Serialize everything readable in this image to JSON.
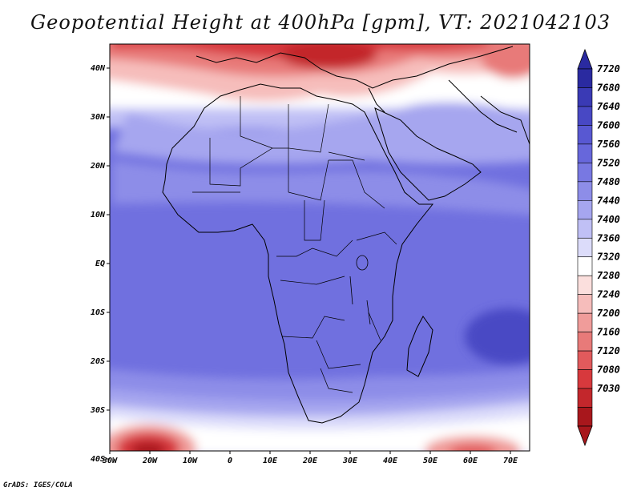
{
  "title": "Geopotential Height at 400hPa [gpm], VT: 2021042103",
  "credit": "GrADS: IGES/COLA",
  "colors": {
    "palette": [
      "#a8171c",
      "#c3272c",
      "#d7393d",
      "#e15a5c",
      "#e87a79",
      "#f09c9a",
      "#f6bdbb",
      "#fbdfdd",
      "#ffffff",
      "#dcdcfa",
      "#c0c0f5",
      "#a6a6ef",
      "#8d8de8",
      "#7878e2",
      "#6767db",
      "#5858d2",
      "#4848c4",
      "#3a3ab5",
      "#2a2aa0"
    ],
    "land_border": "#000000"
  },
  "map": {
    "lon_ticks": [
      "30W",
      "20W",
      "10W",
      "0",
      "10E",
      "20E",
      "30E",
      "40E",
      "50E",
      "60E",
      "70E"
    ],
    "lat_ticks": [
      "40N",
      "30N",
      "20N",
      "10N",
      "EQ",
      "10S",
      "20S",
      "30S",
      "40S"
    ]
  },
  "legend": {
    "levels": [
      "7720",
      "7680",
      "7640",
      "7600",
      "7560",
      "7520",
      "7480",
      "7440",
      "7400",
      "7360",
      "7320",
      "7280",
      "7240",
      "7200",
      "7160",
      "7120",
      "7080",
      "7030"
    ]
  }
}
